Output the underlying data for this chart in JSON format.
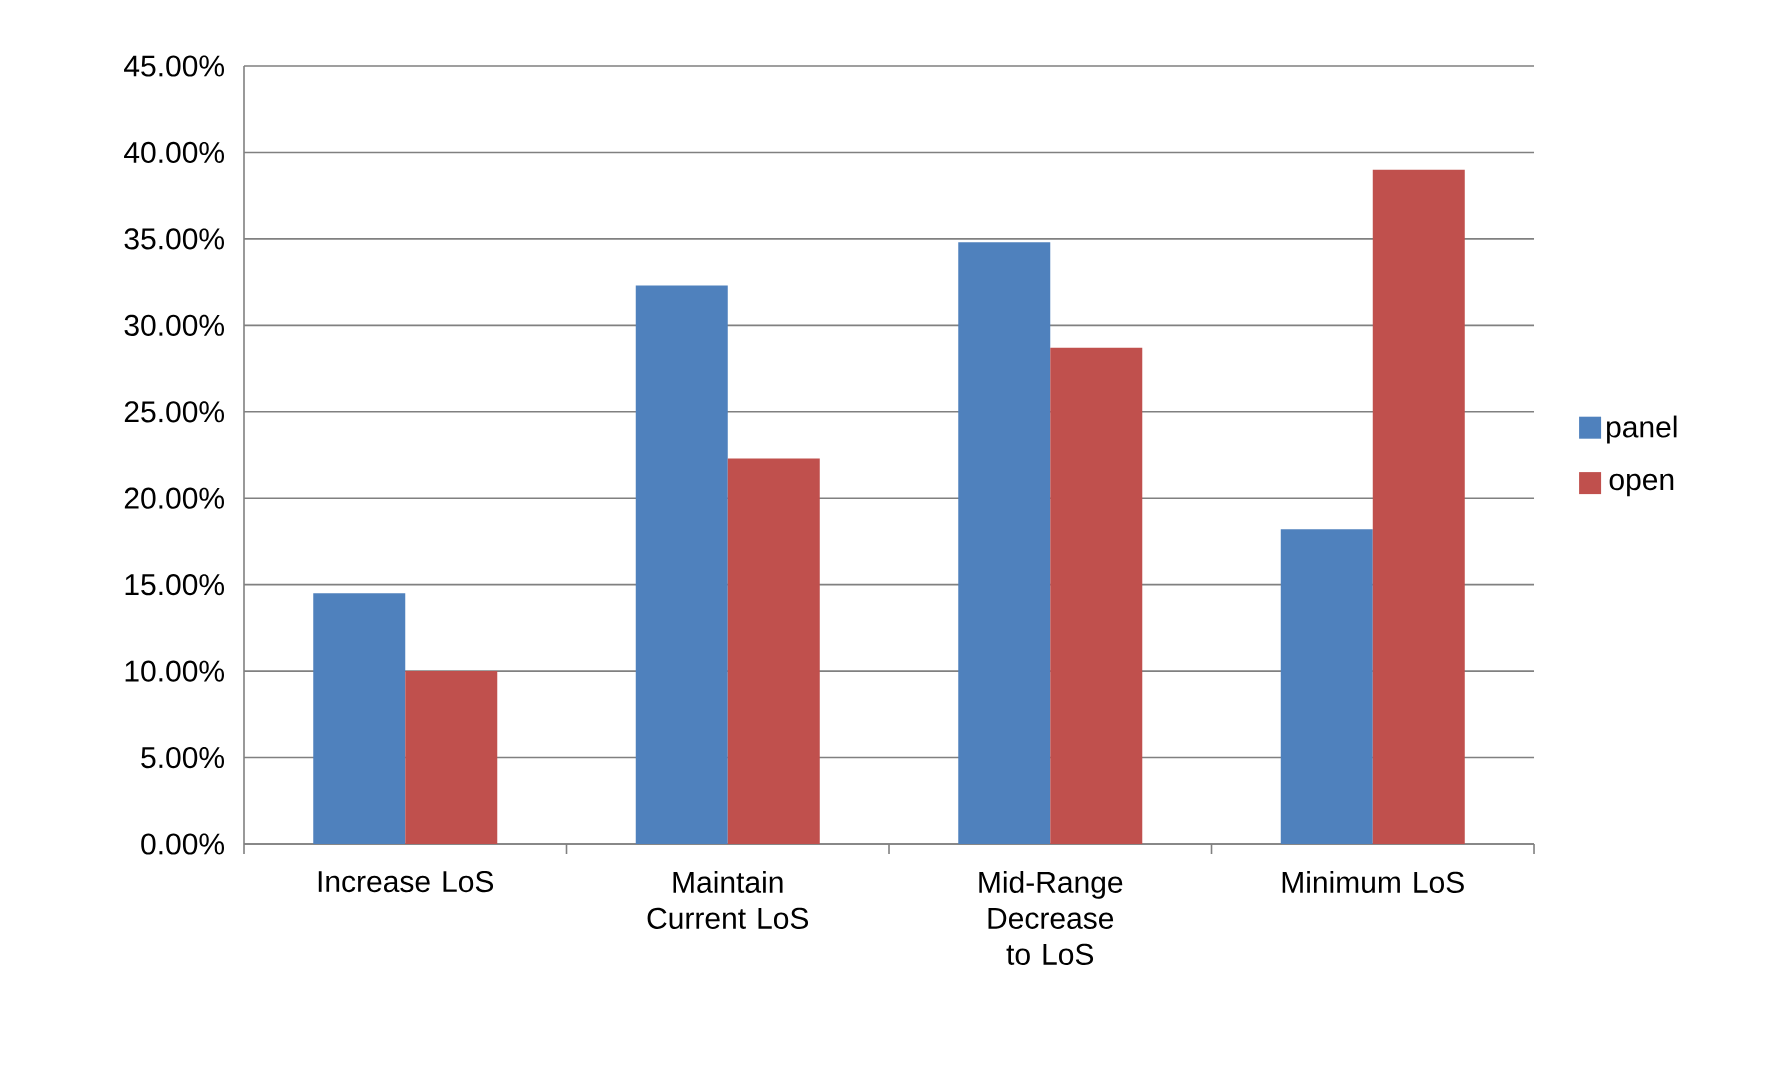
{
  "chart_data": {
    "type": "bar",
    "categories": [
      "Increase LoS",
      "Maintain Current LoS",
      "Mid-Range Decrease to LoS",
      "Minimum LoS"
    ],
    "series": [
      {
        "name": "panel",
        "color": "#4f81bd",
        "values": [
          14.5,
          32.3,
          34.8,
          18.2
        ]
      },
      {
        "name": "open",
        "color": "#c0504d",
        "values": [
          10.0,
          22.3,
          28.7,
          39.0
        ]
      }
    ],
    "ylim": [
      0,
      45
    ],
    "yticks": [
      {
        "value": 0,
        "label": "0.00%"
      },
      {
        "value": 5,
        "label": "5.00%"
      },
      {
        "value": 10,
        "label": "10.00%"
      },
      {
        "value": 15,
        "label": "15.00%"
      },
      {
        "value": 20,
        "label": "20.00%"
      },
      {
        "value": 25,
        "label": "25.00%"
      },
      {
        "value": 30,
        "label": "30.00%"
      },
      {
        "value": 35,
        "label": "35.00%"
      },
      {
        "value": 40,
        "label": "40.00%"
      },
      {
        "value": 45,
        "label": "45.00%"
      }
    ],
    "grid": "y",
    "legend": "right"
  }
}
